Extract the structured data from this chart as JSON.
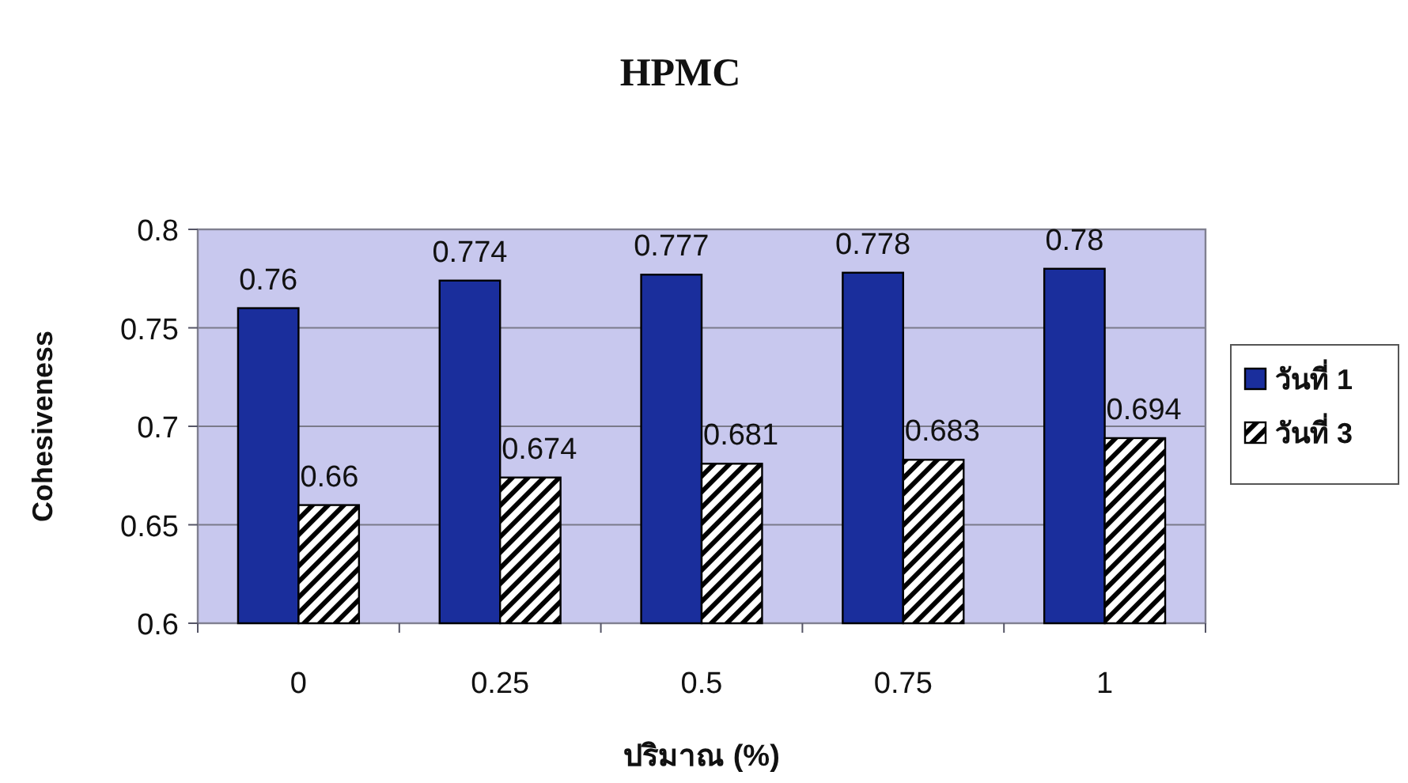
{
  "chart_data": {
    "type": "bar",
    "title": "HPMC",
    "xlabel": "ปริมาณ (%)",
    "ylabel": "Cohesiveness",
    "categories": [
      "0",
      "0.25",
      "0.5",
      "0.75",
      "1"
    ],
    "series": [
      {
        "name": "วันที่ 1",
        "color": "#1a2e9c",
        "values": [
          0.76,
          0.774,
          0.777,
          0.778,
          0.78
        ]
      },
      {
        "name": "วันที่ 3",
        "color": "#000000",
        "values": [
          0.66,
          0.674,
          0.681,
          0.683,
          0.694
        ]
      }
    ],
    "ylim": [
      0.6,
      0.8
    ],
    "yticks": [
      0.6,
      0.65,
      0.7,
      0.75,
      0.8
    ],
    "grid": "y",
    "legend": "right",
    "data_labels": true
  }
}
